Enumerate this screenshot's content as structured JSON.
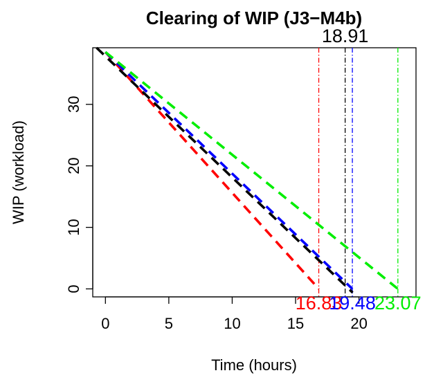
{
  "chart_data": {
    "type": "line",
    "title": "Clearing of WIP (J3−M4b)",
    "xlabel": "Time (hours)",
    "ylabel": "WIP (workload)",
    "xlim": [
      -1,
      24.5
    ],
    "ylim": [
      -1.3,
      39.2
    ],
    "x_ticks": [
      0,
      5,
      10,
      15,
      20
    ],
    "y_ticks": [
      0,
      10,
      20,
      30
    ],
    "grid": false,
    "series": [
      {
        "color": "#ff0000",
        "x": [
          0,
          16.83
        ],
        "y": [
          38.5,
          0
        ]
      },
      {
        "color": "#0000ff",
        "x": [
          0,
          19.48
        ],
        "y": [
          38.5,
          0
        ]
      },
      {
        "color": "#00ee00",
        "x": [
          0,
          23.07
        ],
        "y": [
          38.5,
          0
        ]
      },
      {
        "color": "#000000",
        "x": [
          -0.7,
          19.5
        ],
        "y": [
          39.2,
          -0.6
        ]
      }
    ],
    "vlines": [
      {
        "x": 16.83,
        "color": "#ff0000",
        "label": "16.83",
        "position": "bottom"
      },
      {
        "x": 18.91,
        "color": "#000000",
        "label": "18.91",
        "position": "top"
      },
      {
        "x": 19.48,
        "color": "#0000ff",
        "label": "19.48",
        "position": "bottom"
      },
      {
        "x": 23.07,
        "color": "#00ee00",
        "label": "23.07",
        "position": "bottom"
      }
    ]
  }
}
